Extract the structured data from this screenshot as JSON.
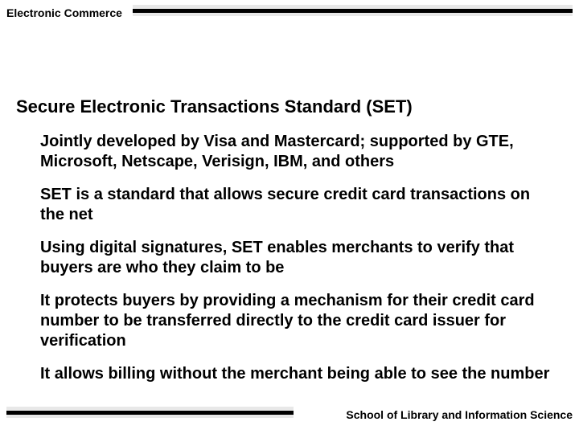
{
  "header": {
    "label": "Electronic Commerce"
  },
  "slide": {
    "title": "Secure Electronic Transactions Standard (SET)",
    "bullets": [
      "Jointly developed by Visa and Mastercard; supported by GTE, Microsoft, Netscape, Verisign, IBM, and others",
      "SET is a standard that allows secure credit card transactions on the net",
      "Using digital signatures, SET enables merchants to verify that buyers are who they claim to be",
      "It protects buyers by providing a mechanism for their credit card number to be transferred directly to the credit card issuer for verification",
      "It allows billing without the merchant being able to see the number"
    ]
  },
  "footer": {
    "label": "School of Library and Information Science"
  },
  "style": {
    "background": "#ffffff",
    "text_color": "#000000",
    "bar_light": "#e8e8e8",
    "bar_dark": "#000000",
    "title_fontsize": 22,
    "bullet_fontsize": 20,
    "header_fontsize": 14
  }
}
